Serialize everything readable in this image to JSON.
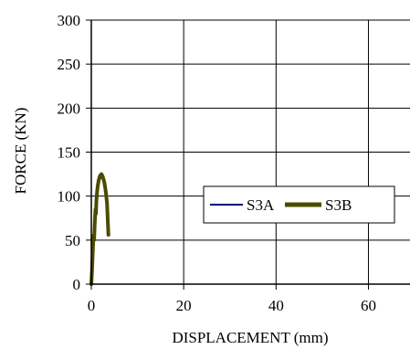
{
  "chart_data": {
    "type": "line",
    "title": "",
    "xlabel": "DISPLACEMENT (mm)",
    "ylabel": "FORCE (KN)",
    "xlim": [
      0,
      69
    ],
    "ylim": [
      0,
      300
    ],
    "x_ticks": [
      0,
      20,
      40,
      60
    ],
    "y_ticks": [
      0,
      50,
      100,
      150,
      200,
      250,
      300
    ],
    "grid": true,
    "legend_position": "right",
    "series": [
      {
        "name": "S3A",
        "color": "#000080",
        "points": [
          [
            0,
            0
          ],
          [
            0.2,
            20
          ],
          [
            0.4,
            45
          ],
          [
            0.6,
            65
          ],
          [
            0.8,
            80
          ],
          [
            1.0,
            92
          ],
          [
            1.2,
            100
          ],
          [
            1.4,
            108
          ],
          [
            1.6,
            114
          ],
          [
            1.8,
            118
          ],
          [
            2.0,
            120
          ],
          [
            2.3,
            121
          ],
          [
            2.6,
            119
          ],
          [
            2.9,
            115
          ],
          [
            3.1,
            108
          ],
          [
            3.3,
            98
          ],
          [
            3.5,
            85
          ],
          [
            3.6,
            72
          ],
          [
            3.7,
            60
          ]
        ]
      },
      {
        "name": "S3B",
        "color": "#4b4b00",
        "points": [
          [
            0,
            0
          ],
          [
            0.15,
            15
          ],
          [
            0.3,
            35
          ],
          [
            0.45,
            55
          ],
          [
            0.6,
            50
          ],
          [
            0.75,
            70
          ],
          [
            0.9,
            85
          ],
          [
            1.0,
            80
          ],
          [
            1.1,
            95
          ],
          [
            1.25,
            105
          ],
          [
            1.4,
            112
          ],
          [
            1.6,
            118
          ],
          [
            1.8,
            122
          ],
          [
            2.0,
            124
          ],
          [
            2.2,
            125
          ],
          [
            2.4,
            123
          ],
          [
            2.6,
            120
          ],
          [
            2.8,
            116
          ],
          [
            3.0,
            110
          ],
          [
            3.2,
            102
          ],
          [
            3.4,
            92
          ],
          [
            3.5,
            80
          ],
          [
            3.6,
            68
          ],
          [
            3.7,
            56
          ]
        ]
      }
    ]
  }
}
